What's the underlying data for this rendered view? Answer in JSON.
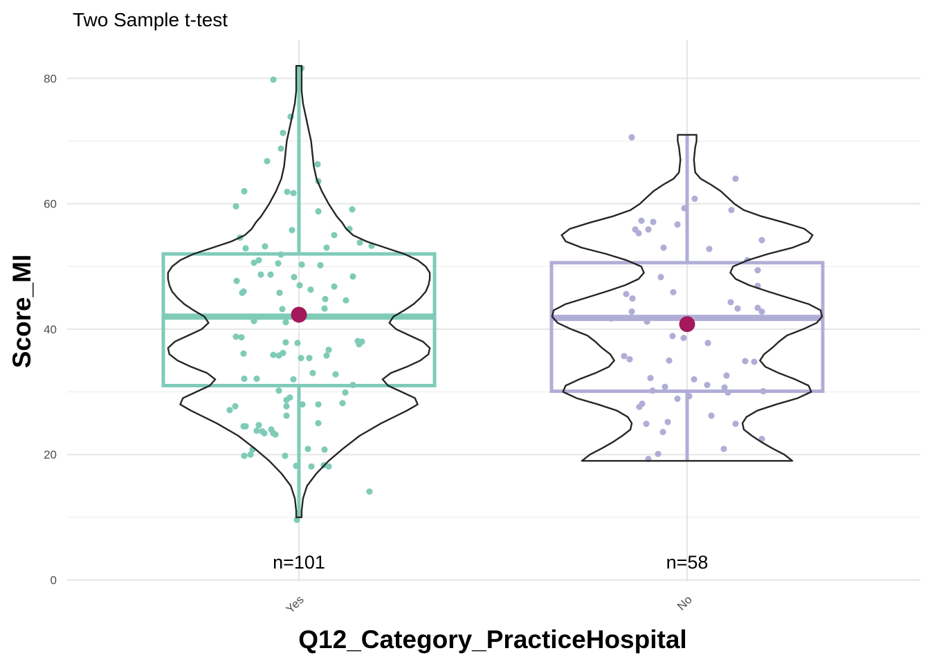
{
  "chart_data": {
    "type": "violin-box-jitter",
    "title": "Two Sample t-test",
    "xlabel": "Q12_Category_PracticeHospital",
    "ylabel": "Score_MI",
    "ylim": [
      0,
      85
    ],
    "yticks": [
      0,
      20,
      40,
      60,
      80
    ],
    "grid": true,
    "groups": [
      {
        "category": "Yes",
        "n_label": "n=101",
        "color": "#7fcbb8",
        "box": {
          "q1": 31,
          "median": 42,
          "q3": 52,
          "min": 10,
          "max": 82
        },
        "mean": 42.3,
        "violin": [
          [
            10,
            0.02
          ],
          [
            11,
            0.02
          ],
          [
            13,
            0.03
          ],
          [
            15,
            0.06
          ],
          [
            17,
            0.13
          ],
          [
            19,
            0.22
          ],
          [
            21,
            0.33
          ],
          [
            23,
            0.45
          ],
          [
            25,
            0.61
          ],
          [
            27,
            0.8
          ],
          [
            28,
            0.88
          ],
          [
            29,
            0.86
          ],
          [
            30,
            0.76
          ],
          [
            31,
            0.66
          ],
          [
            32,
            0.62
          ],
          [
            33,
            0.68
          ],
          [
            34,
            0.8
          ],
          [
            35,
            0.9
          ],
          [
            36,
            0.96
          ],
          [
            37,
            0.97
          ],
          [
            38,
            0.92
          ],
          [
            39,
            0.82
          ],
          [
            40,
            0.72
          ],
          [
            41,
            0.67
          ],
          [
            42,
            0.7
          ],
          [
            43,
            0.78
          ],
          [
            44,
            0.85
          ],
          [
            45,
            0.9
          ],
          [
            46,
            0.94
          ],
          [
            47,
            0.96
          ],
          [
            48,
            0.97
          ],
          [
            49,
            0.97
          ],
          [
            50,
            0.94
          ],
          [
            51,
            0.88
          ],
          [
            52,
            0.78
          ],
          [
            53,
            0.64
          ],
          [
            54,
            0.5
          ],
          [
            55,
            0.4
          ],
          [
            56,
            0.35
          ],
          [
            57,
            0.32
          ],
          [
            58,
            0.28
          ],
          [
            60,
            0.22
          ],
          [
            62,
            0.17
          ],
          [
            64,
            0.13
          ],
          [
            66,
            0.11
          ],
          [
            68,
            0.1
          ],
          [
            70,
            0.09
          ],
          [
            72,
            0.07
          ],
          [
            74,
            0.05
          ],
          [
            76,
            0.03
          ],
          [
            78,
            0.02
          ],
          [
            80,
            0.02
          ],
          [
            82,
            0.02
          ]
        ],
        "points": [
          [
            3.7,
            81.6
          ],
          [
            -37,
            79.8
          ],
          [
            -12,
            73.9
          ],
          [
            -23,
            71.3
          ],
          [
            -26,
            68.8
          ],
          [
            -46,
            66.8
          ],
          [
            27,
            66.3
          ],
          [
            28,
            63.6
          ],
          [
            -17,
            61.9
          ],
          [
            -8,
            61.7
          ],
          [
            -79,
            62.0
          ],
          [
            -91,
            59.6
          ],
          [
            77,
            59.1
          ],
          [
            28,
            58.8
          ],
          [
            -10,
            55.8
          ],
          [
            51,
            55.0
          ],
          [
            -85,
            54.6
          ],
          [
            73,
            56.0
          ],
          [
            -49,
            53.2
          ],
          [
            -77,
            52.9
          ],
          [
            -26,
            51.9
          ],
          [
            40,
            53.0
          ],
          [
            88,
            53.8
          ],
          [
            105,
            53.3
          ],
          [
            -58,
            51.0
          ],
          [
            -65,
            50.6
          ],
          [
            4,
            50.3
          ],
          [
            -30,
            50.5
          ],
          [
            31,
            50.2
          ],
          [
            -55,
            48.7
          ],
          [
            -41,
            48.7
          ],
          [
            -7,
            48.3
          ],
          [
            78,
            48.4
          ],
          [
            1,
            47.0
          ],
          [
            -90,
            47.7
          ],
          [
            -28,
            45.8
          ],
          [
            -80,
            46.0
          ],
          [
            -82,
            45.8
          ],
          [
            17,
            46.3
          ],
          [
            51,
            46.8
          ],
          [
            38,
            44.8
          ],
          [
            68,
            44.6
          ],
          [
            37,
            43.3
          ],
          [
            -2,
            43.0
          ],
          [
            -24,
            43.2
          ],
          [
            -65,
            41.3
          ],
          [
            -19,
            41.1
          ],
          [
            -83,
            38.7
          ],
          [
            -91,
            38.8
          ],
          [
            -19,
            37.9
          ],
          [
            -2,
            37.8
          ],
          [
            -37,
            35.9
          ],
          [
            -29,
            35.8
          ],
          [
            -80,
            36.1
          ],
          [
            -23,
            36.2
          ],
          [
            3,
            35.4
          ],
          [
            15,
            35.4
          ],
          [
            40,
            35.8
          ],
          [
            43,
            36.7
          ],
          [
            85,
            38.1
          ],
          [
            91,
            38.0
          ],
          [
            87,
            37.6
          ],
          [
            20,
            33.0
          ],
          [
            53,
            32.8
          ],
          [
            78,
            31.1
          ],
          [
            -61,
            32.1
          ],
          [
            -79,
            32.1
          ],
          [
            -8,
            32.0
          ],
          [
            -29,
            30.2
          ],
          [
            67,
            29.9
          ],
          [
            -13,
            29.1
          ],
          [
            -18,
            28.7
          ],
          [
            -18,
            27.7
          ],
          [
            -18,
            26.2
          ],
          [
            5,
            28.0
          ],
          [
            28,
            28.0
          ],
          [
            63,
            28.2
          ],
          [
            -92,
            27.7
          ],
          [
            -100,
            27.1
          ],
          [
            -80,
            24.5
          ],
          [
            -37,
            23.4
          ],
          [
            -40,
            24.0
          ],
          [
            -61,
            23.8
          ],
          [
            -34,
            23.2
          ],
          [
            -58,
            24.7
          ],
          [
            -77,
            24.5
          ],
          [
            -50,
            23.4
          ],
          [
            -53,
            23.7
          ],
          [
            -79,
            19.8
          ],
          [
            -20,
            19.8
          ],
          [
            18,
            18.1
          ],
          [
            36,
            18.3
          ],
          [
            -70,
            20.0
          ],
          [
            -67,
            20.8
          ],
          [
            28,
            25.0
          ],
          [
            37,
            20.8
          ],
          [
            43,
            18.1
          ],
          [
            -4,
            18.2
          ],
          [
            13,
            20.9
          ],
          [
            -3,
            9.6
          ],
          [
            102,
            14.1
          ]
        ]
      },
      {
        "category": "No",
        "n_label": "n=58",
        "color": "#b0aed6",
        "box": {
          "q1": 30.1,
          "median": 41.8,
          "q3": 50.6,
          "min": 19,
          "max": 71
        },
        "mean": 40.8,
        "violin": [
          [
            19,
            0.78
          ],
          [
            20,
            0.72
          ],
          [
            21,
            0.63
          ],
          [
            22,
            0.55
          ],
          [
            23,
            0.48
          ],
          [
            24,
            0.42
          ],
          [
            25,
            0.41
          ],
          [
            26,
            0.44
          ],
          [
            27,
            0.52
          ],
          [
            28,
            0.66
          ],
          [
            29,
            0.82
          ],
          [
            30,
            0.92
          ],
          [
            31,
            0.9
          ],
          [
            32,
            0.8
          ],
          [
            33,
            0.68
          ],
          [
            34,
            0.58
          ],
          [
            35,
            0.54
          ],
          [
            36,
            0.57
          ],
          [
            37,
            0.63
          ],
          [
            38,
            0.68
          ],
          [
            39,
            0.74
          ],
          [
            40,
            0.86
          ],
          [
            41,
            0.96
          ],
          [
            42,
            1.0
          ],
          [
            43,
            0.99
          ],
          [
            44,
            0.9
          ],
          [
            45,
            0.75
          ],
          [
            46,
            0.6
          ],
          [
            47,
            0.46
          ],
          [
            48,
            0.36
          ],
          [
            49,
            0.32
          ],
          [
            50,
            0.34
          ],
          [
            51,
            0.45
          ],
          [
            52,
            0.6
          ],
          [
            53,
            0.78
          ],
          [
            54,
            0.9
          ],
          [
            55,
            0.93
          ],
          [
            56,
            0.87
          ],
          [
            57,
            0.72
          ],
          [
            58,
            0.55
          ],
          [
            59,
            0.42
          ],
          [
            60,
            0.35
          ],
          [
            61,
            0.3
          ],
          [
            62,
            0.25
          ],
          [
            63,
            0.18
          ],
          [
            64,
            0.1
          ],
          [
            65,
            0.06
          ],
          [
            67,
            0.05
          ],
          [
            69,
            0.06
          ],
          [
            70,
            0.07
          ],
          [
            71,
            0.07
          ]
        ],
        "points": [
          [
            -80,
            70.6
          ],
          [
            70,
            64.0
          ],
          [
            11,
            60.8
          ],
          [
            -4,
            59.3
          ],
          [
            64,
            59.0
          ],
          [
            -75,
            55.9
          ],
          [
            -66,
            57.3
          ],
          [
            -49,
            57.1
          ],
          [
            -56,
            55.9
          ],
          [
            -14,
            56.7
          ],
          [
            -70,
            55.3
          ],
          [
            -34,
            53.0
          ],
          [
            32,
            52.8
          ],
          [
            108,
            54.2
          ],
          [
            87,
            51.0
          ],
          [
            102,
            49.4
          ],
          [
            -38,
            48.3
          ],
          [
            -20,
            45.9
          ],
          [
            -88,
            45.6
          ],
          [
            -79,
            44.9
          ],
          [
            63,
            44.3
          ],
          [
            102,
            46.9
          ],
          [
            73,
            43.3
          ],
          [
            102,
            43.4
          ],
          [
            108,
            42.8
          ],
          [
            -80,
            42.8
          ],
          [
            -110,
            41.7
          ],
          [
            -58,
            41.2
          ],
          [
            -21,
            38.9
          ],
          [
            -5,
            38.6
          ],
          [
            30,
            37.8
          ],
          [
            -91,
            35.7
          ],
          [
            -83,
            35.2
          ],
          [
            -26,
            35.0
          ],
          [
            84,
            34.9
          ],
          [
            97,
            34.8
          ],
          [
            -53,
            32.2
          ],
          [
            10,
            32.0
          ],
          [
            29,
            31.1
          ],
          [
            57,
            32.6
          ],
          [
            54,
            30.7
          ],
          [
            59,
            29.9
          ],
          [
            110,
            30.1
          ],
          [
            -14,
            28.9
          ],
          [
            3,
            29.3
          ],
          [
            -65,
            28.1
          ],
          [
            -69,
            27.6
          ],
          [
            35,
            26.2
          ],
          [
            -59,
            24.9
          ],
          [
            -28,
            25.2
          ],
          [
            -35,
            23.6
          ],
          [
            70,
            24.9
          ],
          [
            108,
            22.5
          ],
          [
            -42,
            20.1
          ],
          [
            -56,
            19.3
          ],
          [
            53,
            20.9
          ],
          [
            -50,
            30.2
          ],
          [
            -32,
            30.8
          ]
        ]
      }
    ]
  }
}
